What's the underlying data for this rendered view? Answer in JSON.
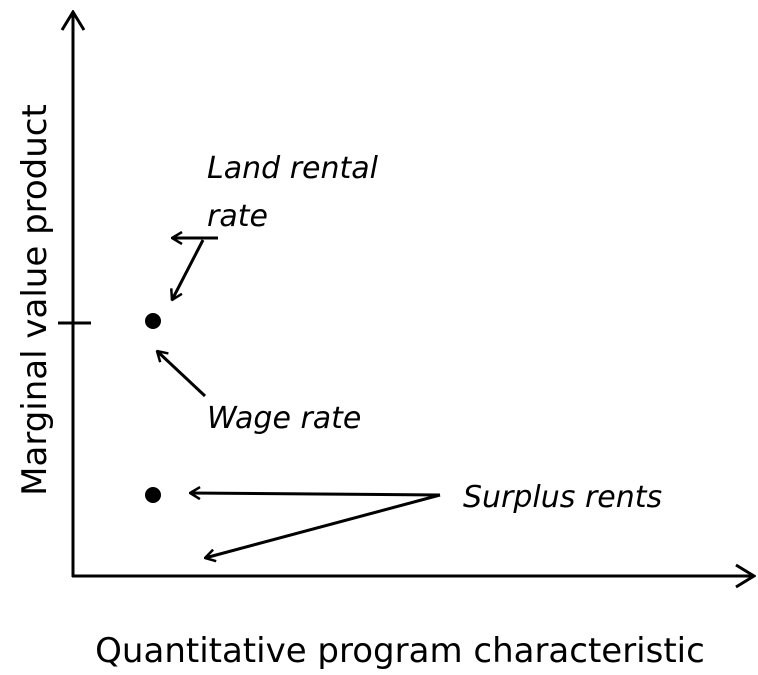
{
  "axes": {
    "y_label": "Marginal value product",
    "x_label": "Quantitative program characteristic"
  },
  "annotations": {
    "land_rental_rate": [
      "Land rental",
      "rate"
    ],
    "wage_rate": "Wage rate",
    "surplus_rents": "Surplus rents"
  }
}
